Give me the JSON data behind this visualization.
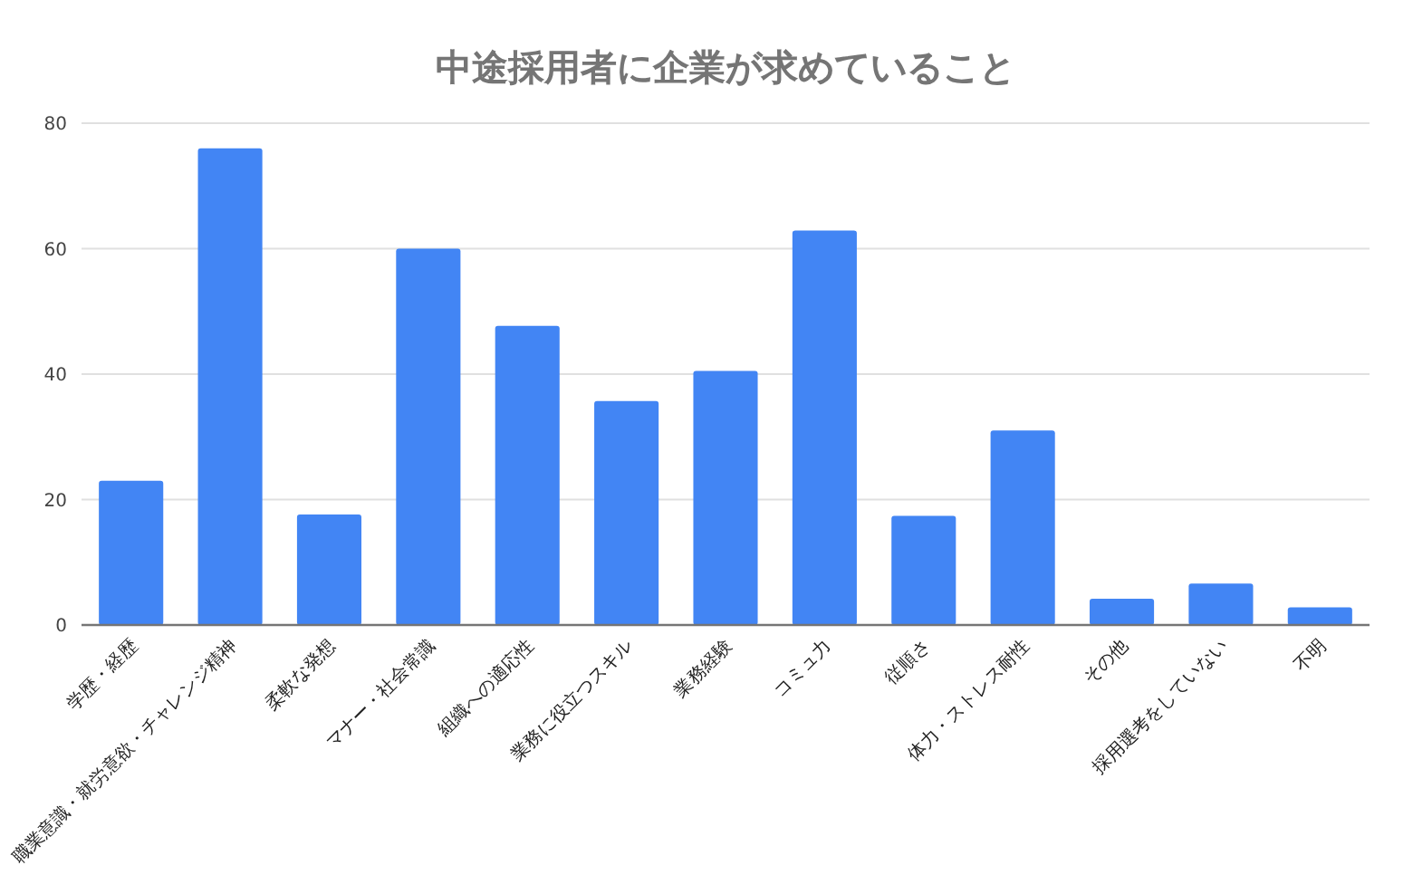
{
  "chart_data": {
    "type": "bar",
    "title": "中途採用者に企業が求めていること",
    "categories": [
      "学歴・経歴",
      "職業意識・就労意欲・チャレンジ精神",
      "柔軟な発想",
      "マナー・社会常識",
      "組織への適応性",
      "業務に役立つスキル",
      "業務経験",
      "コミュ力",
      "従順さ",
      "体力・ストレス耐性",
      "その他",
      "採用選考をしていない",
      "不明"
    ],
    "values": [
      23,
      76,
      17.6,
      60,
      47.7,
      35.7,
      40.5,
      62.9,
      17.4,
      31,
      4.2,
      6.6,
      2.8
    ],
    "color": "#4285f4",
    "ylim": [
      0,
      80
    ],
    "yticks": [
      0,
      20,
      40,
      60,
      80
    ],
    "grid": "y"
  }
}
